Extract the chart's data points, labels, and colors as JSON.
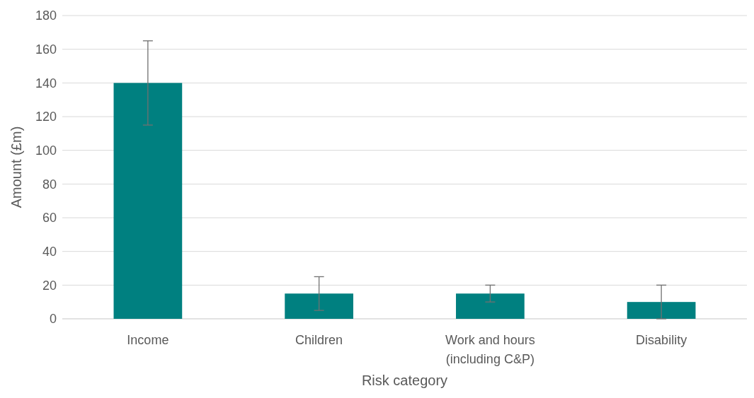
{
  "chart_data": {
    "type": "bar",
    "xlabel": "Risk category",
    "ylabel": "Amount (£m)",
    "categories": [
      "Income",
      "Children",
      "Work and hours\n(including C&P)",
      "Disability"
    ],
    "values": [
      140,
      15,
      15,
      10
    ],
    "errors": [
      25,
      10,
      5,
      10
    ],
    "color": "#008080",
    "ylim": [
      0,
      180
    ],
    "yticks": [
      0,
      20,
      40,
      60,
      80,
      100,
      120,
      140,
      160,
      180
    ],
    "grid": "y"
  }
}
